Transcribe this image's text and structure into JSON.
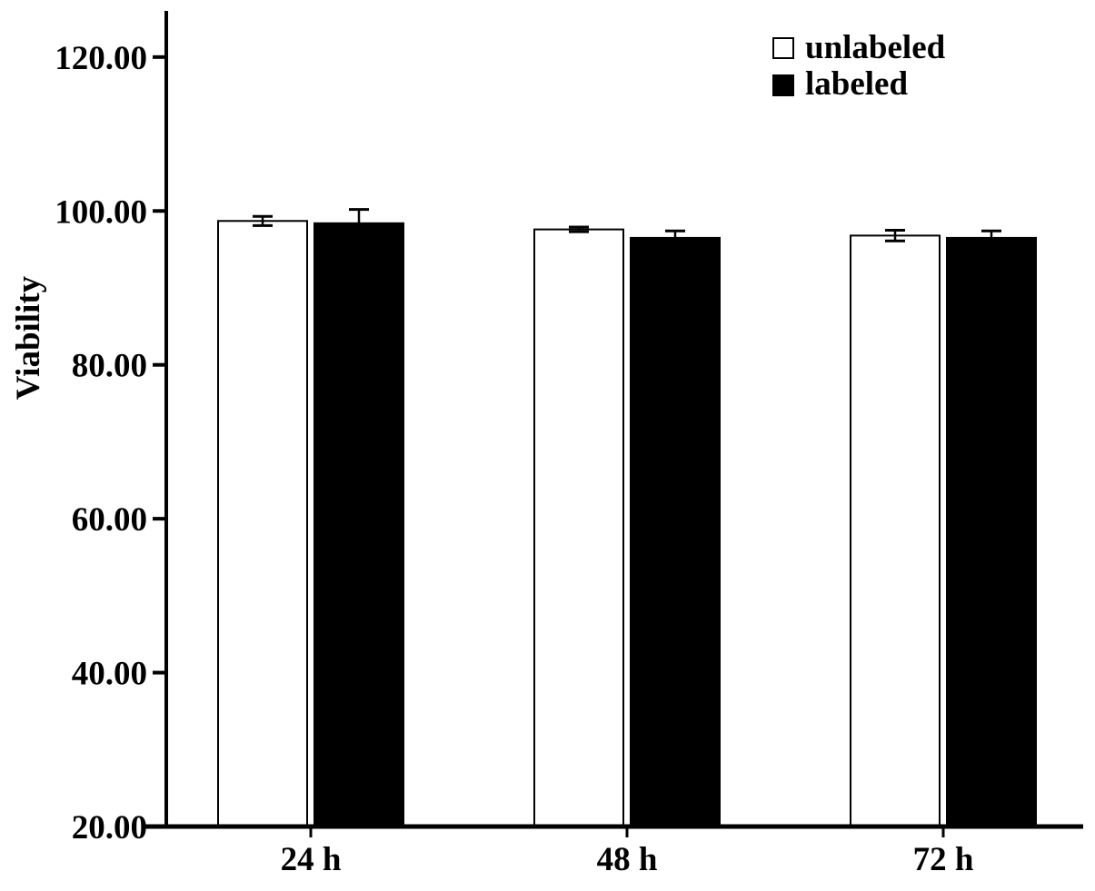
{
  "chart_data": {
    "type": "bar",
    "title": "",
    "xlabel": "",
    "ylabel": "Viability",
    "ylim": [
      20,
      126
    ],
    "yticks": [
      "20.00",
      "40.00",
      "60.00",
      "80.00",
      "100.00",
      "120.00"
    ],
    "ytick_values": [
      20,
      40,
      60,
      80,
      100,
      120
    ],
    "categories": [
      "24 h",
      "48 h",
      "72 h"
    ],
    "series": [
      {
        "name": "unlabeled",
        "color": "#ffffff",
        "values": [
          98.7,
          97.6,
          96.8
        ],
        "errors": [
          0.6,
          0.3,
          0.7
        ]
      },
      {
        "name": "labeled",
        "color": "#000000",
        "values": [
          98.4,
          96.5,
          96.5
        ],
        "errors": [
          1.8,
          0.9,
          0.9
        ]
      }
    ],
    "legend_position": "top-right",
    "grid": false
  }
}
